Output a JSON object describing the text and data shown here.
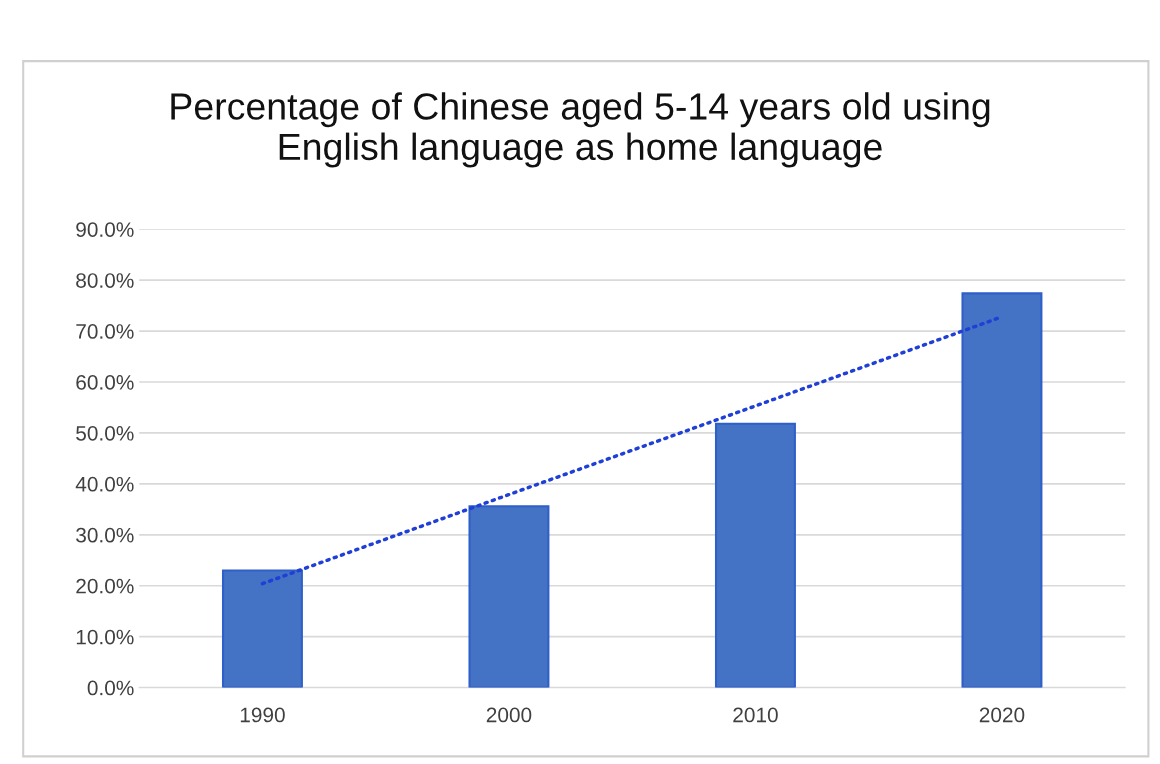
{
  "chart_data": {
    "type": "bar",
    "title": "Percentage of Chinese aged 5-14 years old using\nEnglish language as home language",
    "categories": [
      "1990",
      "2000",
      "2010",
      "2020"
    ],
    "series": [
      {
        "color": "#4472c4",
        "values": [
          23.0,
          35.6,
          51.8,
          77.4
        ]
      },
      {
        "type": "line",
        "color": "#1f3fd6",
        "values": [
          20.4,
          37.9,
          55.3,
          72.8
        ],
        "line_style": "dotted"
      }
    ],
    "ylim": [
      0,
      90
    ],
    "yticks": [
      {
        "value": 0,
        "label": "0.0%"
      },
      {
        "value": 10,
        "label": "10.0%"
      },
      {
        "value": 20,
        "label": "20.0%"
      },
      {
        "value": 30,
        "label": "30.0%"
      },
      {
        "value": 40,
        "label": "40.0%"
      },
      {
        "value": 50,
        "label": "50.0%"
      },
      {
        "value": 60,
        "label": "60.0%"
      },
      {
        "value": 70,
        "label": "70.0%"
      },
      {
        "value": 80,
        "label": "80.0%"
      },
      {
        "value": 90,
        "label": "90.0%"
      }
    ],
    "grid": "y",
    "legend": false
  }
}
